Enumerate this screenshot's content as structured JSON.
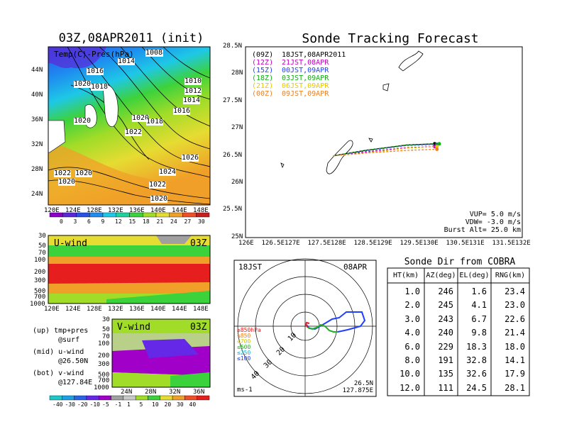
{
  "left_panel": {
    "title": "03Z,08APR2011 (init)",
    "map_label": "Temp(C)-Pres(hPa)",
    "lat_ticks": [
      "44N",
      "40N",
      "36N",
      "32N",
      "28N",
      "24N"
    ],
    "lon_ticks": [
      "120E",
      "124E",
      "128E",
      "132E",
      "136E",
      "140E",
      "144E",
      "148E"
    ],
    "isobars": [
      "1008",
      "1014",
      "1016",
      "1020",
      "1018",
      "1010",
      "1012",
      "1014",
      "1016",
      "1020",
      "1018",
      "1020",
      "1022",
      "1026",
      "1024",
      "1022",
      "1022",
      "1020",
      "1020",
      "1020",
      "1008"
    ],
    "colorbar_temp": {
      "labels": [
        "0",
        "3",
        "6",
        "9",
        "12",
        "15",
        "18",
        "21",
        "24",
        "27",
        "30"
      ],
      "colors": [
        "#8a00c8",
        "#5a28d8",
        "#2a50e8",
        "#1e8cf0",
        "#1ec8e6",
        "#1ed2a0",
        "#3cd23c",
        "#a0dc28",
        "#e6dc32",
        "#f0a028",
        "#f05028",
        "#c81e1e"
      ]
    },
    "uwind": {
      "title": "U-wind",
      "time": "03Z",
      "levels": [
        "30",
        "50",
        "70",
        "100",
        "200",
        "300",
        "500",
        "700",
        "1000"
      ],
      "lon_ticks": [
        "120E",
        "124E",
        "128E",
        "132E",
        "136E",
        "140E",
        "144E",
        "148E"
      ]
    },
    "vwind": {
      "title": "V-wind",
      "time": "03Z",
      "levels": [
        "30",
        "50",
        "70",
        "100",
        "200",
        "300",
        "500",
        "700",
        "1000"
      ],
      "lat_ticks": [
        "24N",
        "28N",
        "32N",
        "36N"
      ]
    },
    "legend_text": [
      "(up) tmp+pres",
      "@surf",
      "(mid) u-wind",
      "@26.50N",
      "(bot) v-wind",
      "@127.84E"
    ],
    "colorbar_wind": {
      "labels": [
        "-40",
        "-30",
        "-20",
        "-10",
        "-5",
        "-1",
        "1",
        "5",
        "10",
        "20",
        "30",
        "40"
      ],
      "colors": [
        "#1ec8c8",
        "#1ea0e6",
        "#2864e6",
        "#6428e6",
        "#a000c8",
        "#a0a0a0",
        "#c8c8c8",
        "#a0dc28",
        "#3cd23c",
        "#e6dc32",
        "#f0a028",
        "#f05028",
        "#e61e1e"
      ]
    }
  },
  "tracking": {
    "title": "Sonde Tracking Forecast",
    "lat_ticks": [
      "28.5N",
      "28N",
      "27.5N",
      "27N",
      "26.5N",
      "26N",
      "25.5N",
      "25N"
    ],
    "lon_ticks": [
      "126E",
      "126.5E",
      "127E",
      "127.5E",
      "128E",
      "128.5E",
      "129E",
      "129.5E",
      "130E",
      "130.5E",
      "131E",
      "131.5E",
      "132E"
    ],
    "legend": [
      {
        "code": "(09Z)",
        "time": "18JST,08APR2011",
        "color": "#000000"
      },
      {
        "code": "(12Z)",
        "time": "21JST,08APR",
        "color": "#c000c0"
      },
      {
        "code": "(15Z)",
        "time": "00JST,09APR",
        "color": "#2040ff"
      },
      {
        "code": "(18Z)",
        "time": "03JST,09APR",
        "color": "#10b010"
      },
      {
        "code": "(21Z)",
        "time": "06JST,09APR",
        "color": "#e6c800"
      },
      {
        "code": "(00Z)",
        "time": "09JST,09APR",
        "color": "#f08020"
      }
    ],
    "vup": "VUP= 5.0 m/s",
    "vdw": "VDW= -3.0 m/s",
    "burst": "Burst Alt= 25.0 km"
  },
  "chart_data": [
    {
      "type": "line",
      "title": "Sonde Tracking Forecast",
      "xlim": [
        126,
        132
      ],
      "ylim": [
        25,
        28.5
      ],
      "series": [
        {
          "name": "(09Z) 18JST,08APR2011",
          "x": [
            127.9,
            128.6,
            129.5,
            130.1
          ],
          "y": [
            26.5,
            26.6,
            26.7,
            26.72
          ]
        },
        {
          "name": "(12Z) 21JST,08APR",
          "x": [
            127.9,
            128.6,
            129.5,
            130.1
          ],
          "y": [
            26.5,
            26.57,
            26.65,
            26.67
          ]
        },
        {
          "name": "(15Z) 00JST,09APR",
          "x": [
            127.9,
            128.6,
            129.5,
            130.15
          ],
          "y": [
            26.5,
            26.59,
            26.69,
            26.71
          ]
        },
        {
          "name": "(18Z) 03JST,09APR",
          "x": [
            127.9,
            128.6,
            129.5,
            130.2
          ],
          "y": [
            26.5,
            26.6,
            26.7,
            26.72
          ]
        },
        {
          "name": "(21Z) 06JST,09APR",
          "x": [
            127.9,
            128.6,
            129.5,
            130.15
          ],
          "y": [
            26.5,
            26.55,
            26.64,
            26.67
          ]
        },
        {
          "name": "(00Z) 09JST,09APR",
          "x": [
            127.9,
            128.6,
            129.5,
            130.15
          ],
          "y": [
            26.5,
            26.55,
            26.6,
            26.62
          ]
        }
      ]
    },
    {
      "type": "table",
      "title": "Sonde Dir from COBRA",
      "columns": [
        "HT(km)",
        "AZ(deg)",
        "EL(deg)",
        "RNG(km)"
      ],
      "rows": [
        [
          "1.0",
          "246",
          "1.6",
          "23.4"
        ],
        [
          "2.0",
          "245",
          "4.1",
          "23.0"
        ],
        [
          "3.0",
          "243",
          "6.7",
          "22.6"
        ],
        [
          "4.0",
          "240",
          "9.8",
          "21.4"
        ],
        [
          "6.0",
          "229",
          "18.3",
          "18.0"
        ],
        [
          "8.0",
          "191",
          "32.8",
          "14.1"
        ],
        [
          "10.0",
          "135",
          "32.6",
          "17.9"
        ],
        [
          "12.0",
          "111",
          "24.5",
          "28.1"
        ]
      ]
    }
  ],
  "hodograph": {
    "time": "18JST",
    "date": "08APR",
    "ring_labels": [
      "10",
      "20",
      "30",
      "40"
    ],
    "units": "ms-1",
    "lat": "26.5N",
    "lon": "127.875E",
    "levels": [
      {
        "label": "≥850hPa",
        "color": "#e61e1e"
      },
      {
        "label": "≤850",
        "color": "#f08020"
      },
      {
        "label": "≤700",
        "color": "#d0c800"
      },
      {
        "label": "≤500",
        "color": "#20b020"
      },
      {
        "label": "≤250",
        "color": "#20b0d0"
      },
      {
        "label": "≤100",
        "color": "#2040ff"
      }
    ]
  }
}
